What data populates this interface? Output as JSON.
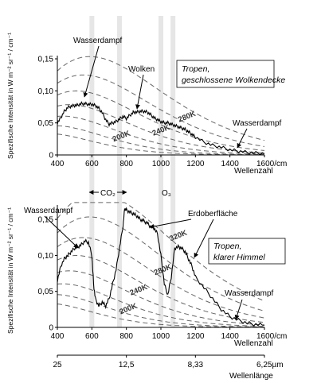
{
  "chart_data": [
    {
      "type": "line",
      "ylabel": "Spezifische Intensität in W m⁻² sr⁻¹ / cm⁻¹",
      "xlabel": "Wellenzahl",
      "x_ticks": [
        "400",
        "600",
        "800",
        "1000",
        "1200",
        "1400",
        "1600/cm"
      ],
      "y_ticks": [
        "0",
        "0,05",
        "0,10",
        "0,15"
      ],
      "xlim": [
        400,
        1600
      ],
      "ylim": [
        0,
        0.155
      ],
      "box_text": [
        "Tropen,",
        "geschlossene Wolkendecke"
      ],
      "annotations": [
        "Wasserdampf",
        "Wolken",
        "Wasserdampf"
      ],
      "planck_curves": [
        {
          "label": "280K",
          "temperature": 280
        },
        {
          "label": "240K",
          "temperature": 240
        },
        {
          "label": "200K",
          "temperature": 200
        },
        {
          "label": "",
          "temperature": 300
        },
        {
          "label": "",
          "temperature": 260
        },
        {
          "label": "",
          "temperature": 220
        },
        {
          "label": "",
          "temperature": 180
        }
      ],
      "series": [
        {
          "x": [
            400,
            420,
            440,
            460,
            480,
            500,
            520,
            540,
            560,
            580,
            600,
            620,
            640,
            660,
            680,
            700,
            720,
            740,
            760,
            780,
            800,
            820,
            840,
            860,
            880,
            900,
            920,
            940,
            960,
            980,
            1000,
            1020,
            1040,
            1060,
            1080,
            1100,
            1120,
            1140,
            1160,
            1180,
            1200,
            1250,
            1300,
            1350,
            1400,
            1450,
            1500,
            1550,
            1600
          ],
          "y": [
            0.05,
            0.058,
            0.068,
            0.074,
            0.076,
            0.077,
            0.078,
            0.08,
            0.08,
            0.079,
            0.079,
            0.077,
            0.073,
            0.066,
            0.055,
            0.048,
            0.05,
            0.052,
            0.056,
            0.06,
            0.057,
            0.062,
            0.066,
            0.067,
            0.068,
            0.068,
            0.067,
            0.063,
            0.058,
            0.055,
            0.052,
            0.05,
            0.05,
            0.048,
            0.046,
            0.044,
            0.042,
            0.04,
            0.036,
            0.032,
            0.028,
            0.02,
            0.015,
            0.012,
            0.008,
            0.006,
            0.004,
            0.003,
            0.002
          ]
        }
      ]
    },
    {
      "type": "line",
      "ylabel": "Spezifische Intensität in W m⁻² sr⁻¹ / cm⁻¹",
      "xlabel": "Wellenzahl",
      "x_ticks": [
        "400",
        "600",
        "800",
        "1000",
        "1200",
        "1400",
        "1600/cm"
      ],
      "y_ticks": [
        "0",
        "0,05",
        "0,10",
        "0,15"
      ],
      "xlim": [
        400,
        1600
      ],
      "ylim": [
        0,
        0.17
      ],
      "secondary_axis": {
        "label": "Wellenlänge",
        "ticks": [
          "25",
          "12,5",
          "8,33",
          "6,25µm"
        ]
      },
      "box_text": [
        "Tropen,",
        "klarer Himmel"
      ],
      "annotations": [
        "Wasserdampf",
        "Erdoberfläche",
        "Wasserdampf"
      ],
      "bands": [
        {
          "label": "CO₂",
          "from": 600,
          "to": 760
        },
        {
          "label": "O₃",
          "from": 1000,
          "to": 1070
        }
      ],
      "planck_curves": [
        {
          "label": "320K",
          "temperature": 320
        },
        {
          "label": "280K",
          "temperature": 280
        },
        {
          "label": "240K",
          "temperature": 240
        },
        {
          "label": "200K",
          "temperature": 200
        },
        {
          "label": "",
          "temperature": 300
        },
        {
          "label": "",
          "temperature": 260
        },
        {
          "label": "",
          "temperature": 220
        },
        {
          "label": "",
          "temperature": 180
        }
      ],
      "series": [
        {
          "x": [
            400,
            420,
            440,
            460,
            480,
            500,
            520,
            540,
            560,
            580,
            600,
            610,
            620,
            640,
            660,
            680,
            700,
            720,
            740,
            760,
            780,
            790,
            800,
            820,
            840,
            860,
            880,
            900,
            920,
            940,
            960,
            980,
            1000,
            1020,
            1040,
            1060,
            1080,
            1100,
            1120,
            1140,
            1160,
            1180,
            1200,
            1250,
            1300,
            1350,
            1400,
            1450,
            1500,
            1550,
            1600
          ],
          "y": [
            0.065,
            0.085,
            0.095,
            0.1,
            0.105,
            0.11,
            0.112,
            0.115,
            0.12,
            0.118,
            0.1,
            0.06,
            0.04,
            0.03,
            0.035,
            0.03,
            0.04,
            0.06,
            0.08,
            0.11,
            0.14,
            0.165,
            0.163,
            0.16,
            0.158,
            0.155,
            0.15,
            0.148,
            0.145,
            0.14,
            0.138,
            0.13,
            0.1,
            0.06,
            0.045,
            0.07,
            0.11,
            0.112,
            0.11,
            0.105,
            0.095,
            0.085,
            0.07,
            0.055,
            0.04,
            0.025,
            0.015,
            0.01,
            0.006,
            0.004,
            0.003
          ]
        }
      ]
    }
  ]
}
